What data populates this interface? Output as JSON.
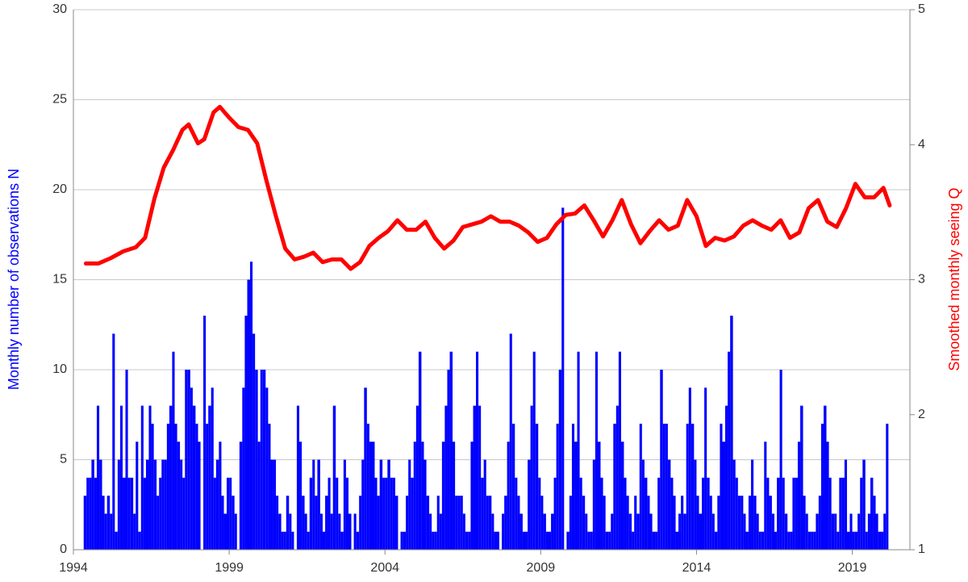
{
  "chart_data": {
    "type": "bar",
    "y_label": "Monthly number of observations N",
    "y2_label": "Smoothed monthly seeing Q",
    "xlim": [
      1994,
      2020.85
    ],
    "xticks": [
      1994,
      1999,
      2004,
      2009,
      2014,
      2019
    ],
    "ylim": [
      0,
      30
    ],
    "yticks": [
      0,
      5,
      10,
      15,
      20,
      25,
      30
    ],
    "y2lim": [
      1,
      5
    ],
    "y2ticks": [
      1,
      2,
      3,
      4,
      5
    ],
    "grid": true,
    "series": [
      {
        "type": "bar",
        "color": "#0000ff",
        "x": [
          1994.33,
          1994.42,
          1994.5,
          1994.58,
          1994.67,
          1994.75,
          1994.83,
          1994.92,
          1995,
          1995.08,
          1995.17,
          1995.25,
          1995.33,
          1995.42,
          1995.5,
          1995.58,
          1995.67,
          1995.75,
          1995.83,
          1995.92,
          1996,
          1996.08,
          1996.17,
          1996.25,
          1996.33,
          1996.42,
          1996.5,
          1996.58,
          1996.67,
          1996.75,
          1996.83,
          1996.92,
          1997,
          1997.08,
          1997.17,
          1997.25,
          1997.33,
          1997.42,
          1997.5,
          1997.58,
          1997.67,
          1997.75,
          1997.83,
          1997.92,
          1998,
          1998.08,
          1998.17,
          1998.25,
          1998.33,
          1998.42,
          1998.5,
          1998.58,
          1998.67,
          1998.75,
          1998.83,
          1998.92,
          1999,
          1999.08,
          1999.17,
          1999.25,
          1999.33,
          1999.42,
          1999.5,
          1999.58,
          1999.67,
          1999.75,
          1999.83,
          1999.92,
          2000,
          2000.08,
          2000.17,
          2000.25,
          2000.33,
          2000.42,
          2000.5,
          2000.58,
          2000.67,
          2000.75,
          2000.83,
          2000.92,
          2001,
          2001.08,
          2001.17,
          2001.25,
          2001.33,
          2001.42,
          2001.5,
          2001.58,
          2001.67,
          2001.75,
          2001.83,
          2001.92,
          2002,
          2002.08,
          2002.17,
          2002.25,
          2002.33,
          2002.42,
          2002.5,
          2002.58,
          2002.67,
          2002.75,
          2002.83,
          2002.92,
          2003,
          2003.08,
          2003.17,
          2003.25,
          2003.33,
          2003.42,
          2003.5,
          2003.58,
          2003.67,
          2003.75,
          2003.83,
          2003.92,
          2004,
          2004.08,
          2004.17,
          2004.25,
          2004.33,
          2004.42,
          2004.5,
          2004.58,
          2004.67,
          2004.75,
          2004.83,
          2004.92,
          2005,
          2005.08,
          2005.17,
          2005.25,
          2005.33,
          2005.42,
          2005.5,
          2005.58,
          2005.67,
          2005.75,
          2005.83,
          2005.92,
          2006,
          2006.08,
          2006.17,
          2006.25,
          2006.33,
          2006.42,
          2006.5,
          2006.58,
          2006.67,
          2006.75,
          2006.83,
          2006.92,
          2007,
          2007.08,
          2007.17,
          2007.25,
          2007.33,
          2007.42,
          2007.5,
          2007.58,
          2007.67,
          2007.75,
          2007.83,
          2007.92,
          2008,
          2008.08,
          2008.17,
          2008.25,
          2008.33,
          2008.42,
          2008.5,
          2008.58,
          2008.67,
          2008.75,
          2008.83,
          2008.92,
          2009,
          2009.08,
          2009.17,
          2009.25,
          2009.33,
          2009.42,
          2009.5,
          2009.58,
          2009.67,
          2009.75,
          2009.83,
          2009.92,
          2010,
          2010.08,
          2010.17,
          2010.25,
          2010.33,
          2010.42,
          2010.5,
          2010.58,
          2010.67,
          2010.75,
          2010.83,
          2010.92,
          2011,
          2011.08,
          2011.17,
          2011.25,
          2011.33,
          2011.42,
          2011.5,
          2011.58,
          2011.67,
          2011.75,
          2011.83,
          2011.92,
          2012,
          2012.08,
          2012.17,
          2012.25,
          2012.33,
          2012.42,
          2012.5,
          2012.58,
          2012.67,
          2012.75,
          2012.83,
          2012.92,
          2013,
          2013.08,
          2013.17,
          2013.25,
          2013.33,
          2013.42,
          2013.5,
          2013.58,
          2013.67,
          2013.75,
          2013.83,
          2013.92,
          2014,
          2014.08,
          2014.17,
          2014.25,
          2014.33,
          2014.42,
          2014.5,
          2014.58,
          2014.67,
          2014.75,
          2014.83,
          2014.92,
          2015,
          2015.08,
          2015.17,
          2015.25,
          2015.33,
          2015.42,
          2015.5,
          2015.58,
          2015.67,
          2015.75,
          2015.83,
          2015.92,
          2016,
          2016.08,
          2016.17,
          2016.25,
          2016.33,
          2016.42,
          2016.5,
          2016.58,
          2016.67,
          2016.75,
          2016.83,
          2016.92,
          2017,
          2017.08,
          2017.17,
          2017.25,
          2017.33,
          2017.42,
          2017.5,
          2017.58,
          2017.67,
          2017.75,
          2017.83,
          2017.92,
          2018,
          2018.08,
          2018.17,
          2018.25,
          2018.33,
          2018.42,
          2018.5,
          2018.58,
          2018.67,
          2018.75,
          2018.83,
          2018.92,
          2019,
          2019.08,
          2019.17,
          2019.25,
          2019.33,
          2019.42,
          2019.5,
          2019.58,
          2019.67,
          2019.75,
          2019.83,
          2019.92,
          2020,
          2020.08
        ],
        "values": [
          3,
          4,
          4,
          5,
          4,
          8,
          5,
          3,
          2,
          3,
          2,
          12,
          1,
          5,
          8,
          4,
          10,
          4,
          4,
          2,
          6,
          1,
          8,
          4,
          5,
          8,
          7,
          5,
          3,
          4,
          5,
          5,
          7,
          8,
          11,
          7,
          6,
          5,
          4,
          10,
          10,
          9,
          8,
          7,
          6,
          0,
          13,
          7,
          8,
          9,
          4,
          5,
          6,
          3,
          2,
          4,
          4,
          3,
          2,
          0,
          6,
          9,
          13,
          15,
          16,
          12,
          10,
          6,
          10,
          10,
          9,
          7,
          5,
          5,
          3,
          2,
          1,
          1,
          3,
          2,
          1,
          0,
          8,
          6,
          3,
          2,
          1,
          4,
          5,
          3,
          5,
          2,
          1,
          3,
          4,
          2,
          8,
          4,
          2,
          1,
          5,
          4,
          2,
          0,
          2,
          1,
          3,
          5,
          9,
          7,
          6,
          6,
          4,
          3,
          5,
          4,
          4,
          5,
          4,
          4,
          3,
          0,
          1,
          1,
          3,
          5,
          4,
          6,
          8,
          11,
          6,
          5,
          3,
          2,
          1,
          1,
          3,
          2,
          6,
          8,
          10,
          11,
          6,
          3,
          3,
          3,
          2,
          1,
          1,
          6,
          8,
          11,
          8,
          4,
          5,
          3,
          3,
          2,
          1,
          1,
          0,
          2,
          3,
          6,
          12,
          7,
          4,
          3,
          2,
          1,
          1,
          5,
          8,
          11,
          7,
          4,
          3,
          2,
          1,
          1,
          2,
          4,
          7,
          10,
          19,
          0,
          1,
          3,
          7,
          6,
          11,
          4,
          3,
          2,
          1,
          1,
          5,
          11,
          6,
          4,
          3,
          1,
          1,
          2,
          7,
          8,
          11,
          6,
          4,
          3,
          2,
          1,
          3,
          2,
          7,
          5,
          4,
          3,
          2,
          1,
          1,
          4,
          10,
          7,
          7,
          5,
          4,
          3,
          1,
          2,
          3,
          2,
          7,
          9,
          7,
          5,
          3,
          2,
          4,
          9,
          4,
          3,
          2,
          1,
          3,
          7,
          6,
          8,
          11,
          13,
          5,
          4,
          3,
          3,
          2,
          1,
          3,
          5,
          3,
          2,
          1,
          1,
          6,
          4,
          3,
          2,
          1,
          4,
          10,
          4,
          2,
          1,
          1,
          4,
          4,
          6,
          8,
          3,
          2,
          1,
          1,
          1,
          2,
          3,
          7,
          8,
          6,
          4,
          2,
          2,
          1,
          4,
          4,
          5,
          1,
          2,
          1,
          1,
          2,
          4,
          5,
          1,
          2,
          4,
          3,
          2,
          1,
          1,
          2,
          7
        ]
      },
      {
        "type": "line",
        "color": "#ff0000",
        "axis": "y2",
        "x": [
          1994.4,
          1994.8,
          1995.2,
          1995.6,
          1996.0,
          1996.3,
          1996.6,
          1996.9,
          1997.2,
          1997.5,
          1997.7,
          1998.0,
          1998.2,
          1998.5,
          1998.7,
          1999.0,
          1999.3,
          1999.6,
          1999.9,
          2000.2,
          2000.5,
          2000.8,
          2001.1,
          2001.4,
          2001.7,
          2002.0,
          2002.3,
          2002.6,
          2002.9,
          2003.2,
          2003.5,
          2003.8,
          2004.1,
          2004.4,
          2004.7,
          2005.0,
          2005.3,
          2005.6,
          2005.9,
          2006.2,
          2006.5,
          2006.8,
          2007.1,
          2007.4,
          2007.7,
          2008.0,
          2008.3,
          2008.6,
          2008.9,
          2009.2,
          2009.5,
          2009.8,
          2010.1,
          2010.4,
          2010.7,
          2011.0,
          2011.3,
          2011.6,
          2011.9,
          2012.2,
          2012.5,
          2012.8,
          2013.1,
          2013.4,
          2013.7,
          2014.0,
          2014.3,
          2014.6,
          2014.9,
          2015.2,
          2015.5,
          2015.8,
          2016.1,
          2016.4,
          2016.7,
          2017.0,
          2017.3,
          2017.6,
          2017.9,
          2018.2,
          2018.5,
          2018.8,
          2019.1,
          2019.4,
          2019.7,
          2020.0,
          2020.2
        ],
        "values": [
          3.12,
          3.12,
          3.16,
          3.21,
          3.24,
          3.31,
          3.6,
          3.83,
          3.96,
          4.11,
          4.15,
          4.01,
          4.04,
          4.24,
          4.28,
          4.2,
          4.13,
          4.11,
          4.01,
          3.73,
          3.47,
          3.23,
          3.15,
          3.17,
          3.2,
          3.13,
          3.15,
          3.15,
          3.08,
          3.13,
          3.25,
          3.31,
          3.36,
          3.44,
          3.37,
          3.37,
          3.43,
          3.31,
          3.23,
          3.29,
          3.39,
          3.41,
          3.43,
          3.47,
          3.43,
          3.43,
          3.4,
          3.35,
          3.28,
          3.31,
          3.41,
          3.48,
          3.49,
          3.55,
          3.44,
          3.32,
          3.44,
          3.59,
          3.41,
          3.27,
          3.36,
          3.44,
          3.37,
          3.4,
          3.59,
          3.47,
          3.25,
          3.31,
          3.29,
          3.32,
          3.4,
          3.44,
          3.4,
          3.37,
          3.44,
          3.31,
          3.35,
          3.53,
          3.59,
          3.43,
          3.39,
          3.53,
          3.71,
          3.61,
          3.61,
          3.68,
          3.55
        ]
      }
    ]
  }
}
